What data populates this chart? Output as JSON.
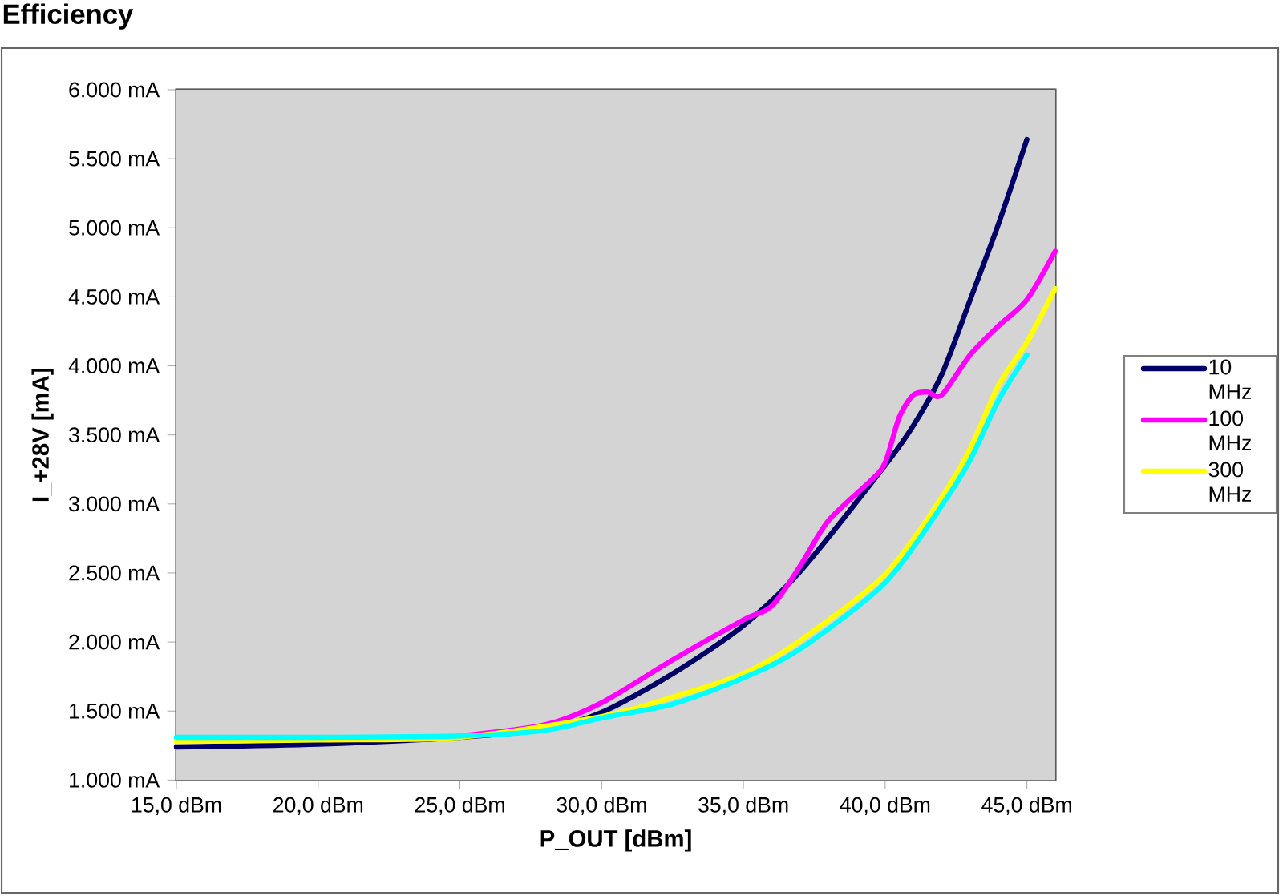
{
  "chart_data": {
    "type": "line",
    "title": "Efficiency",
    "xlabel": "P_OUT [dBm]",
    "ylabel": "I_+28V [mA]",
    "xlim": [
      15,
      46
    ],
    "ylim": [
      1000,
      6000
    ],
    "xticks": [
      {
        "value": 15,
        "label": "15,0 dBm"
      },
      {
        "value": 20,
        "label": "20,0 dBm"
      },
      {
        "value": 25,
        "label": "25,0 dBm"
      },
      {
        "value": 30,
        "label": "30,0 dBm"
      },
      {
        "value": 35,
        "label": "35,0 dBm"
      },
      {
        "value": 40,
        "label": "40,0 dBm"
      },
      {
        "value": 45,
        "label": "45,0 dBm"
      }
    ],
    "yticks": [
      {
        "value": 1000,
        "label": "1.000 mA"
      },
      {
        "value": 1500,
        "label": "1.500 mA"
      },
      {
        "value": 2000,
        "label": "2.000 mA"
      },
      {
        "value": 2500,
        "label": "2.500 mA"
      },
      {
        "value": 3000,
        "label": "3.000 mA"
      },
      {
        "value": 3500,
        "label": "3.500 mA"
      },
      {
        "value": 4000,
        "label": "4.000 mA"
      },
      {
        "value": 4500,
        "label": "4.500 mA"
      },
      {
        "value": 5000,
        "label": "5.000 mA"
      },
      {
        "value": 5500,
        "label": "5.500 mA"
      },
      {
        "value": 6000,
        "label": "6.000 mA"
      }
    ],
    "grid": "y",
    "legend": "right",
    "marker": "none",
    "line_style": "solid",
    "series": [
      {
        "name": "10 MHz",
        "color": "#000066",
        "x": [
          15,
          20,
          25,
          28,
          30,
          32.5,
          35,
          37,
          40,
          41,
          42,
          43,
          44,
          45
        ],
        "values": [
          1240,
          1260,
          1310,
          1370,
          1490,
          1770,
          2120,
          2510,
          3280,
          3570,
          3940,
          4480,
          5030,
          5640
        ]
      },
      {
        "name": "100 MHz",
        "color": "#ff00ff",
        "x": [
          25,
          28,
          30,
          32.5,
          35,
          36,
          37,
          38,
          39.5,
          40,
          40.5,
          41,
          41.5,
          42,
          43,
          44,
          45,
          46
        ],
        "values": [
          1320,
          1400,
          1560,
          1870,
          2160,
          2260,
          2550,
          2880,
          3170,
          3300,
          3630,
          3790,
          3810,
          3790,
          4080,
          4290,
          4480,
          4830
        ]
      },
      {
        "name": "300 MHz",
        "color": "#ffff00",
        "x": [
          15,
          20,
          25,
          30,
          32.5,
          35,
          37,
          40,
          42,
          43,
          44,
          45,
          46
        ],
        "values": [
          1280,
          1290,
          1310,
          1460,
          1600,
          1770,
          2010,
          2490,
          3050,
          3400,
          3860,
          4170,
          4560
        ]
      },
      {
        "color": "#00ffff",
        "x": [
          15,
          20,
          25,
          28,
          30,
          32.5,
          35,
          37,
          40,
          42,
          43,
          44,
          45
        ],
        "values": [
          1310,
          1310,
          1320,
          1360,
          1450,
          1550,
          1740,
          1950,
          2430,
          2990,
          3320,
          3750,
          4080
        ]
      }
    ]
  }
}
